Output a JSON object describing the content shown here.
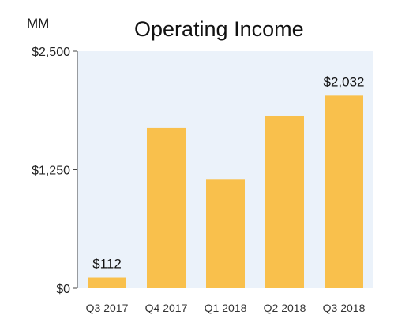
{
  "chart_data": {
    "type": "bar",
    "title": "Operating Income",
    "unit_label": "MM",
    "categories": [
      "Q3 2017",
      "Q4 2017",
      "Q1 2018",
      "Q2 2018",
      "Q3 2018"
    ],
    "values": [
      112,
      1695,
      1152,
      1819,
      2032
    ],
    "data_labels": [
      {
        "category": "Q3 2017",
        "text": "$112"
      },
      {
        "category": "Q3 2018",
        "text": "$2,032"
      }
    ],
    "y_ticks": [
      {
        "value": 0,
        "label": "$0"
      },
      {
        "value": 1250,
        "label": "$1,250"
      },
      {
        "value": 2500,
        "label": "$2,500"
      }
    ],
    "ylim": [
      0,
      2500
    ],
    "grid": false,
    "colors": {
      "bar": "#f9c04c",
      "plot_background": "#ebf2fa"
    }
  }
}
